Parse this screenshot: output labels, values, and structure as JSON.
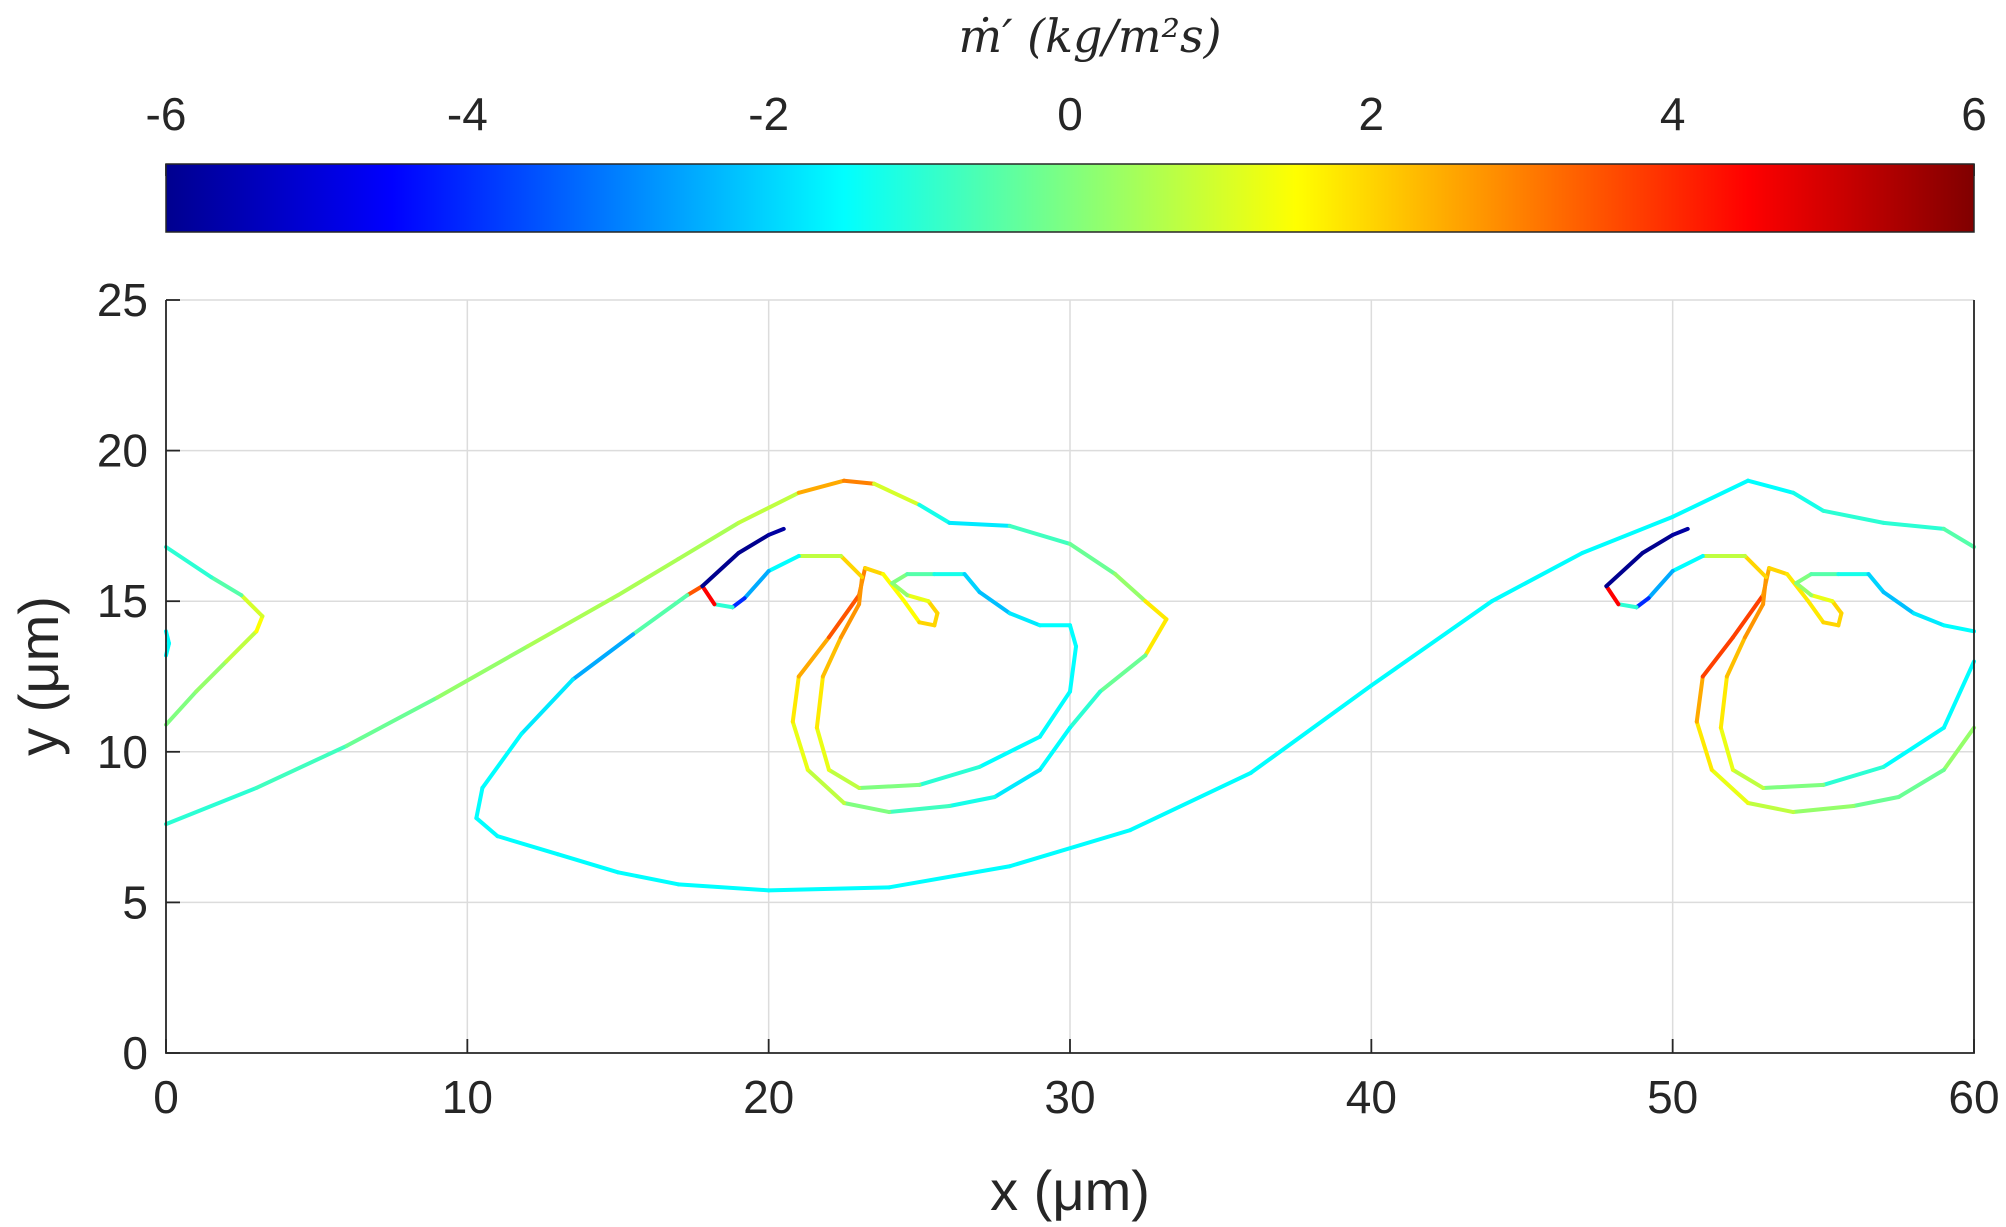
{
  "chart_data": {
    "type": "contour",
    "xlabel": "x (μm)",
    "ylabel": "y (μm)",
    "xlim": [
      0,
      60
    ],
    "ylim": [
      0,
      25
    ],
    "xticks": [
      0,
      10,
      20,
      30,
      40,
      50,
      60
    ],
    "yticks": [
      0,
      5,
      10,
      15,
      20,
      25
    ],
    "grid": true,
    "colormap": "jet",
    "colorbar": {
      "label": "ṁ′   (kg/m²s)",
      "orientation": "horizontal",
      "placement": "top",
      "range": [
        -6,
        6
      ],
      "ticks": [
        -6,
        -4,
        -2,
        0,
        2,
        4,
        6
      ]
    },
    "series": [
      {
        "role": "outer-interface",
        "points": [
          [
            0,
            7.6
          ],
          [
            3,
            8.8
          ],
          [
            6,
            10.2
          ],
          [
            9,
            11.8
          ],
          [
            12,
            13.5
          ],
          [
            15,
            15.2
          ],
          [
            17,
            16.4
          ],
          [
            19,
            17.6
          ],
          [
            21,
            18.6
          ],
          [
            22.5,
            19.0
          ],
          [
            23.5,
            18.9
          ],
          [
            25,
            18.2
          ],
          [
            26,
            17.6
          ],
          [
            28,
            17.5
          ],
          [
            30,
            16.9
          ],
          [
            31.5,
            15.9
          ],
          [
            32.5,
            15.0
          ],
          [
            33.2,
            14.4
          ],
          [
            32.5,
            13.2
          ],
          [
            31,
            12.0
          ],
          [
            30,
            10.8
          ],
          [
            29,
            9.4
          ],
          [
            27.5,
            8.5
          ],
          [
            26,
            8.2
          ],
          [
            24,
            8.0
          ],
          [
            22.5,
            8.3
          ],
          [
            21.3,
            9.4
          ],
          [
            20.8,
            11.0
          ],
          [
            21,
            12.5
          ],
          [
            22,
            13.8
          ],
          [
            23,
            15.2
          ],
          [
            23.2,
            16.1
          ],
          [
            23.8,
            15.9
          ],
          [
            24.5,
            15.0
          ],
          [
            25.0,
            14.3
          ],
          [
            25.5,
            14.2
          ],
          [
            25.6,
            14.6
          ],
          [
            25.3,
            15.0
          ],
          [
            24.6,
            15.2
          ],
          [
            24.1,
            15.6
          ],
          [
            24.6,
            15.9
          ],
          [
            25.5,
            15.9
          ],
          [
            26.5,
            15.9
          ],
          [
            27,
            15.3
          ],
          [
            28,
            14.6
          ],
          [
            29,
            14.2
          ],
          [
            30,
            14.2
          ],
          [
            30.2,
            13.5
          ],
          [
            30,
            12.0
          ],
          [
            29,
            10.5
          ],
          [
            27,
            9.5
          ],
          [
            25,
            8.9
          ],
          [
            23,
            8.8
          ],
          [
            22,
            9.4
          ],
          [
            21.6,
            10.8
          ],
          [
            21.8,
            12.5
          ],
          [
            22.4,
            13.8
          ],
          [
            23,
            14.9
          ],
          [
            23.1,
            15.8
          ],
          [
            22.4,
            16.5
          ],
          [
            21,
            16.5
          ],
          [
            20,
            16.0
          ],
          [
            19.2,
            15.1
          ],
          [
            18.8,
            14.8
          ],
          [
            18.2,
            14.9
          ],
          [
            17.8,
            15.5
          ],
          [
            17.3,
            15.2
          ],
          [
            15.5,
            13.9
          ],
          [
            13.5,
            12.4
          ],
          [
            11.8,
            10.6
          ],
          [
            10.5,
            8.8
          ],
          [
            10.3,
            7.8
          ],
          [
            11,
            7.2
          ],
          [
            13,
            6.6
          ],
          [
            15,
            6.0
          ],
          [
            17,
            5.6
          ],
          [
            20,
            5.4
          ],
          [
            24,
            5.5
          ],
          [
            28,
            6.2
          ],
          [
            32,
            7.4
          ],
          [
            36,
            9.3
          ],
          [
            40,
            12.2
          ],
          [
            44,
            15.0
          ],
          [
            47,
            16.6
          ],
          [
            50,
            17.8
          ],
          [
            52.5,
            19.0
          ],
          [
            54,
            18.6
          ],
          [
            55,
            18.0
          ],
          [
            57,
            17.6
          ],
          [
            59,
            17.4
          ],
          [
            60,
            16.8
          ]
        ],
        "mdot": [
          -1,
          -1,
          -0.5,
          0,
          0.5,
          0.5,
          0.5,
          0.5,
          1,
          4,
          2,
          0,
          -2.5,
          -1,
          -0.5,
          0,
          0.5,
          3,
          0.5,
          -1,
          -1,
          -2,
          -1.5,
          -1,
          -0.5,
          0.5,
          1,
          1.5,
          2,
          3,
          4,
          2,
          2,
          1,
          2,
          2,
          2,
          2,
          0.5,
          0,
          0,
          -1,
          -1.5,
          -2.5,
          -2,
          -1.5,
          -1.5,
          -1.5,
          -1.5,
          -1.5,
          -1.5,
          -0.5,
          0.5,
          1,
          1.5,
          2,
          2.5,
          3,
          2.5,
          1.5,
          0,
          -3,
          -2,
          -6,
          4,
          5,
          2,
          -3,
          -2,
          -1.5,
          -1.5,
          -1.5,
          -1.5,
          -1.5,
          -1.5,
          -1.5,
          -1.5,
          -1.5,
          -1.5,
          -1.5,
          -1.5,
          -1.5,
          -1.5,
          -1.5,
          -1.5,
          -1.5,
          -1.5,
          -1,
          -1,
          -1,
          0
        ]
      },
      {
        "role": "inner-interface",
        "points": [
          [
            0,
            10.9
          ],
          [
            1,
            12
          ],
          [
            2,
            13.0
          ],
          [
            3,
            14.0
          ],
          [
            3.2,
            14.5
          ],
          [
            2.5,
            15.2
          ],
          [
            1.5,
            15.8
          ],
          [
            0,
            16.8
          ]
        ],
        "mdot": [
          0,
          0,
          0.5,
          1,
          2,
          0,
          -1,
          -1
        ]
      },
      {
        "role": "inner-interface-periodic",
        "points": [
          [
            60,
            10.8
          ],
          [
            59,
            9.4
          ],
          [
            57.5,
            8.5
          ],
          [
            56,
            8.2
          ],
          [
            54,
            8.0
          ],
          [
            52.5,
            8.3
          ],
          [
            51.3,
            9.4
          ],
          [
            50.8,
            11.0
          ],
          [
            51,
            12.5
          ],
          [
            52,
            13.8
          ],
          [
            53,
            15.2
          ],
          [
            53.2,
            16.1
          ],
          [
            53.8,
            15.9
          ],
          [
            54.5,
            15.0
          ],
          [
            55.0,
            14.3
          ],
          [
            55.5,
            14.2
          ],
          [
            55.6,
            14.6
          ],
          [
            55.3,
            15.0
          ],
          [
            54.6,
            15.2
          ],
          [
            54.1,
            15.6
          ],
          [
            54.6,
            15.9
          ],
          [
            55.5,
            15.9
          ],
          [
            56.5,
            15.9
          ],
          [
            57,
            15.3
          ],
          [
            58,
            14.6
          ],
          [
            59,
            14.2
          ],
          [
            60,
            14.0
          ]
        ],
        "mdot": [
          0.5,
          0,
          -0.5,
          0,
          0.5,
          1,
          1.5,
          2,
          3,
          4.5,
          3,
          2,
          2,
          1.5,
          2,
          2,
          2,
          2,
          0.5,
          0,
          0,
          -1,
          -1.5,
          -2.5,
          -2,
          -1.5,
          -1.5
        ]
      },
      {
        "role": "inner-loop-periodic",
        "points": [
          [
            60,
            13.0
          ],
          [
            59,
            10.8
          ],
          [
            57,
            9.5
          ],
          [
            55,
            8.9
          ],
          [
            53,
            8.8
          ],
          [
            52,
            9.4
          ],
          [
            51.6,
            10.8
          ],
          [
            51.8,
            12.5
          ],
          [
            52.4,
            13.8
          ],
          [
            53,
            14.9
          ],
          [
            53.1,
            15.8
          ],
          [
            52.4,
            16.5
          ],
          [
            51,
            16.5
          ],
          [
            50,
            16.0
          ],
          [
            49.2,
            15.1
          ],
          [
            48.8,
            14.8
          ],
          [
            48.2,
            14.9
          ],
          [
            47.8,
            15.5
          ]
        ],
        "mdot": [
          -1.5,
          -1.5,
          -1.5,
          -0.5,
          0.5,
          1,
          1.5,
          2,
          2.5,
          3,
          2.5,
          1.5,
          0,
          -3,
          -2,
          -6,
          4,
          5
        ]
      },
      {
        "role": "periodic-outer-upper",
        "points": [
          [
            47.8,
            15.5
          ],
          [
            49,
            16.6
          ],
          [
            50,
            17.2
          ],
          [
            50.5,
            17.4
          ]
        ],
        "mdot": [
          -6,
          -6,
          -6,
          -5.5
        ]
      },
      {
        "role": "upper-film-left",
        "points": [
          [
            17.8,
            15.5
          ],
          [
            19,
            16.6
          ],
          [
            20,
            17.2
          ],
          [
            20.5,
            17.4
          ]
        ],
        "mdot": [
          -6,
          -6,
          -6,
          -5.5
        ]
      },
      {
        "role": "left-edge-fragment",
        "points": [
          [
            0,
            13.2
          ],
          [
            0.1,
            13.6
          ],
          [
            0,
            14.0
          ]
        ],
        "mdot": [
          -1.5,
          -1.5,
          -1.5
        ]
      }
    ]
  }
}
